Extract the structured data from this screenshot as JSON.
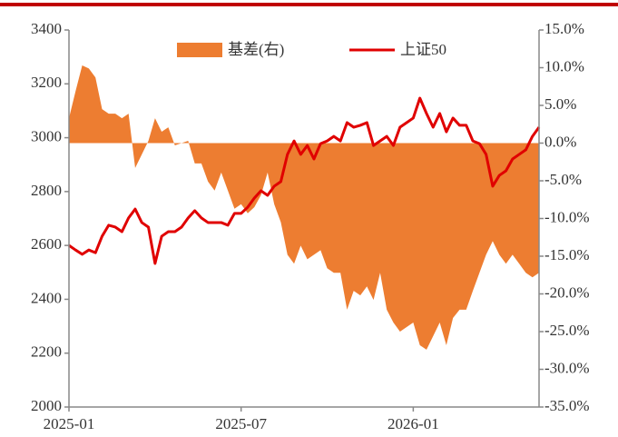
{
  "chart_data": {
    "type": "line",
    "categories": [
      "2025-01",
      null,
      null,
      null,
      null,
      null,
      null,
      null,
      null,
      null,
      null,
      null,
      null,
      null,
      null,
      null,
      null,
      null,
      null,
      null,
      null,
      null,
      null,
      null,
      null,
      null,
      "2025-07",
      null,
      null,
      null,
      null,
      null,
      null,
      null,
      null,
      null,
      null,
      null,
      null,
      null,
      null,
      null,
      null,
      null,
      null,
      null,
      null,
      null,
      null,
      null,
      null,
      null,
      "2026-01",
      null,
      null,
      null,
      null,
      null,
      null,
      null,
      null,
      null,
      null,
      null,
      null,
      null,
      null,
      null,
      null,
      null,
      null,
      null
    ],
    "series": [
      {
        "name": "上证50",
        "color": "#e00000",
        "axis": "y",
        "values": [
          2600,
          2583,
          2567,
          2583,
          2573,
          2634,
          2675,
          2668,
          2651,
          2702,
          2735,
          2685,
          2668,
          2533,
          2634,
          2651,
          2651,
          2668,
          2702,
          2729,
          2702,
          2685,
          2685,
          2685,
          2675,
          2719,
          2719,
          2742,
          2776,
          2803,
          2786,
          2820,
          2837,
          2938,
          2988,
          2938,
          2971,
          2921,
          2978,
          2988,
          3005,
          2988,
          3056,
          3039,
          3046,
          3056,
          2971,
          2988,
          3005,
          2971,
          3039,
          3056,
          3073,
          3147,
          3090,
          3039,
          3090,
          3022,
          3073,
          3046,
          3046,
          2988,
          2978,
          2938,
          2820,
          2860,
          2877,
          2921,
          2938,
          2955,
          3005,
          3039
        ]
      },
      {
        "name": "基差(右)",
        "color": "#ed7d31",
        "axis": "y2",
        "values": [
          3.3,
          6.9,
          10.3,
          9.9,
          8.7,
          4.5,
          3.9,
          3.9,
          3.3,
          3.9,
          -3.3,
          -1.5,
          0.3,
          3.3,
          1.5,
          2.1,
          -0.3,
          0,
          0.3,
          -2.7,
          -2.7,
          -5.1,
          -6.3,
          -3.9,
          -6.3,
          -8.7,
          -8.1,
          -9.3,
          -8.5,
          -6.9,
          -3.9,
          -8.1,
          -10.5,
          -14.8,
          -16,
          -13.6,
          -15.4,
          -14.8,
          -14.2,
          -16.6,
          -17.2,
          -17.2,
          -22.1,
          -19.6,
          -20.2,
          -19,
          -20.8,
          -17.2,
          -22.1,
          -23.8,
          -25,
          -24.4,
          -23.8,
          -26.8,
          -27.4,
          -25.6,
          -23.8,
          -26.8,
          -23.2,
          -22.1,
          -22.1,
          -19.6,
          -17.2,
          -14.8,
          -13,
          -14.8,
          -16,
          -14.8,
          -16,
          -17.2,
          -17.8,
          -17.2
        ]
      }
    ],
    "ylim": [
      2000,
      3400
    ],
    "yticks": [
      2000,
      2200,
      2400,
      2600,
      2800,
      3000,
      3200,
      3400
    ],
    "y2lim": [
      -35,
      15
    ],
    "y2ticks": [
      {
        "value": -35,
        "label": "-35.0%"
      },
      {
        "value": -30,
        "label": "-30.0%"
      },
      {
        "value": -25,
        "label": "-25.0%"
      },
      {
        "value": -20,
        "label": "-20.0%"
      },
      {
        "value": -15,
        "label": "-15.0%"
      },
      {
        "value": -10,
        "label": "-10.0%"
      },
      {
        "value": -5,
        "label": "-5.0%"
      },
      {
        "value": 0,
        "label": "0.0%"
      },
      {
        "value": 5,
        "label": "5.0%"
      },
      {
        "value": 10,
        "label": "10.0%"
      },
      {
        "value": 15,
        "label": "15.0%"
      }
    ]
  }
}
